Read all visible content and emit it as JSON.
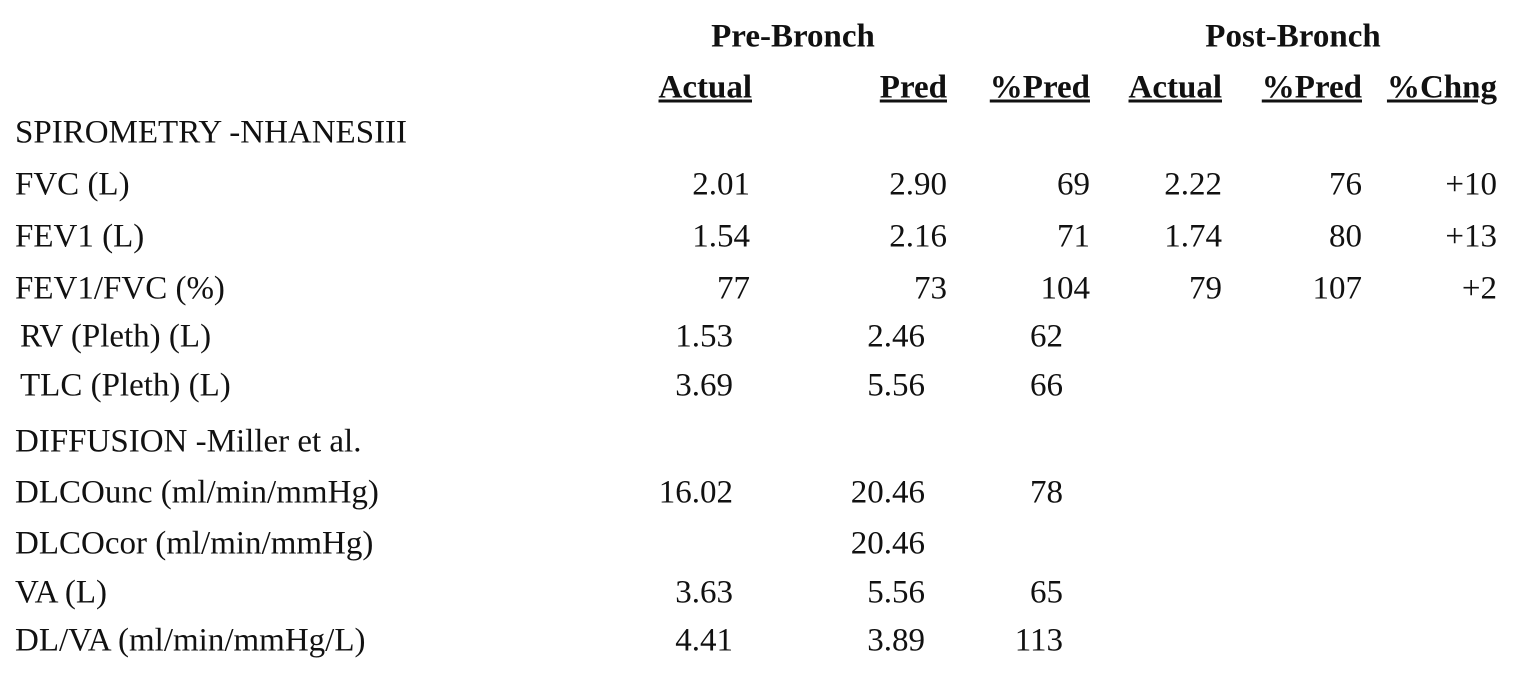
{
  "header": {
    "groups": [
      "Pre-Bronch",
      "Post-Bronch"
    ],
    "columns": [
      "Actual",
      "Pred",
      "%Pred",
      "Actual",
      "%Pred",
      "%Chng"
    ]
  },
  "sections": [
    {
      "title": "SPIROMETRY -NHANESIII",
      "rows": [
        {
          "label": "FVC (L)",
          "values": [
            "2.01",
            "2.90",
            "69",
            "2.22",
            "76",
            "+10"
          ]
        },
        {
          "label": "FEV1 (L)",
          "values": [
            "1.54",
            "2.16",
            "71",
            "1.74",
            "80",
            "+13"
          ]
        },
        {
          "label": "FEV1/FVC (%)",
          "values": [
            "77",
            "73",
            "104",
            "79",
            "107",
            "+2"
          ]
        },
        {
          "label": "RV (Pleth) (L)",
          "values": [
            "1.53",
            "2.46",
            "62"
          ]
        },
        {
          "label": "TLC (Pleth) (L)",
          "values": [
            "3.69",
            "5.56",
            "66"
          ]
        }
      ]
    },
    {
      "title": "DIFFUSION -Miller et al.",
      "rows": [
        {
          "label": "DLCOunc (ml/min/mmHg)",
          "values": [
            "16.02",
            "20.46",
            "78"
          ]
        },
        {
          "label": "DLCOcor (ml/min/mmHg)",
          "values": [
            null,
            "20.46",
            null
          ]
        },
        {
          "label": "VA (L)",
          "values": [
            "3.63",
            "5.56",
            "65"
          ]
        },
        {
          "label": "DL/VA (ml/min/mmHg/L)",
          "values": [
            "4.41",
            "3.89",
            "113"
          ]
        }
      ]
    }
  ]
}
